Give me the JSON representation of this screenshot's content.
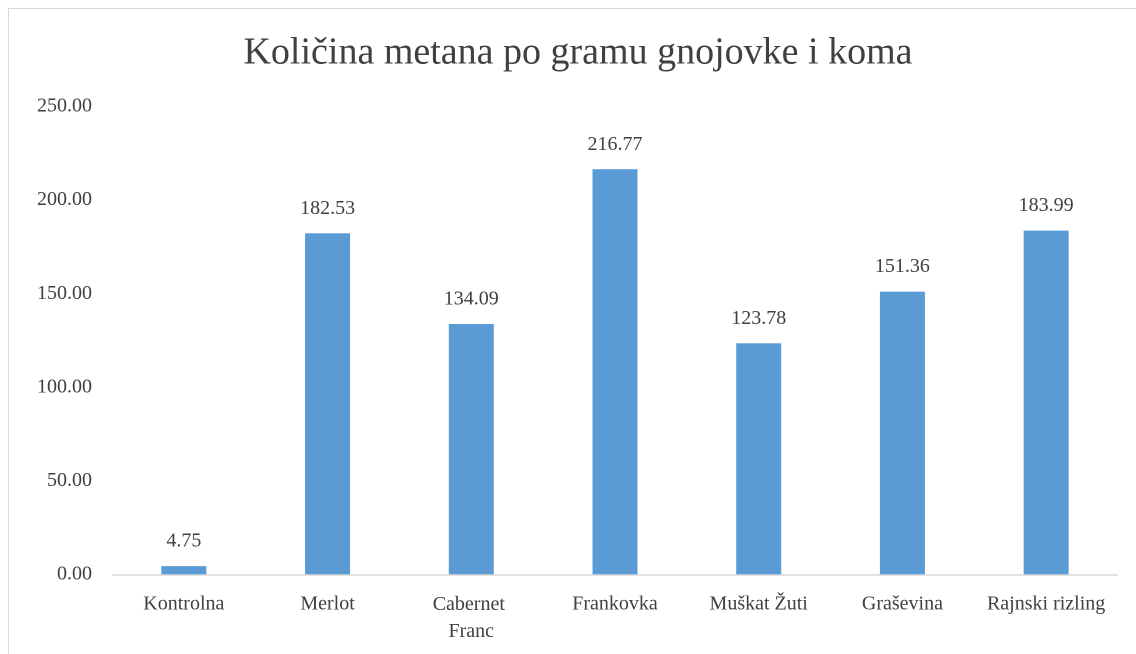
{
  "chart_data": {
    "type": "bar",
    "title": "Količina metana po gramu gnojovke i koma",
    "categories": [
      "Kontrolna",
      "Merlot",
      "Cabernet Franc",
      "Frankovka",
      "Muškat Žuti",
      "Graševina",
      "Rajnski rizling"
    ],
    "values": [
      4.75,
      182.53,
      134.09,
      216.77,
      123.78,
      151.36,
      183.99
    ],
    "color": "#5b9bd5",
    "ylim": [
      0,
      250
    ],
    "yticks": [
      {
        "value": 0,
        "label": "0.00"
      },
      {
        "value": 50,
        "label": "50.00"
      },
      {
        "value": 100,
        "label": "100.00"
      },
      {
        "value": 150,
        "label": "150.00"
      },
      {
        "value": 200,
        "label": "200.00"
      },
      {
        "value": 250,
        "label": "250.00"
      }
    ],
    "grid": false
  }
}
